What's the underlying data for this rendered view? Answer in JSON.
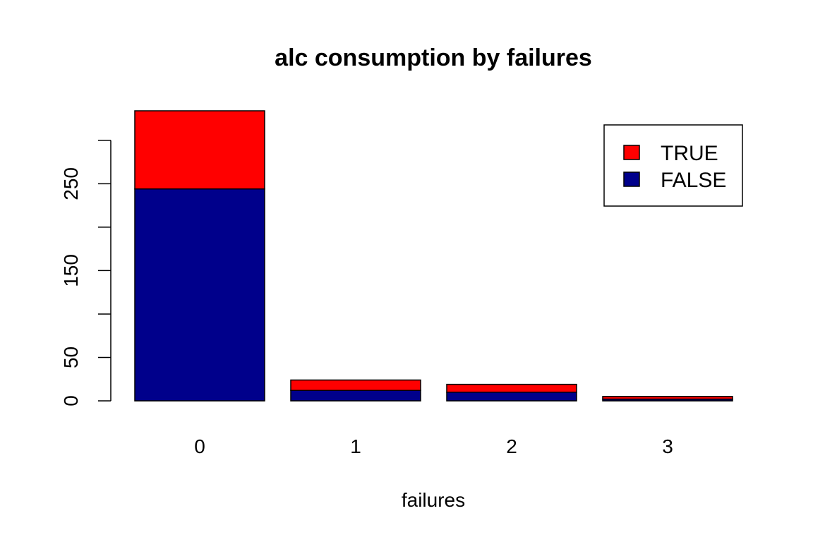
{
  "chart_data": {
    "type": "bar",
    "stacked": true,
    "title": "alc consumption by failures",
    "xlabel": "failures",
    "ylabel": "",
    "categories": [
      "0",
      "1",
      "2",
      "3"
    ],
    "series": [
      {
        "name": "FALSE",
        "color": "#00008B",
        "values": [
          244,
          12,
          10,
          2
        ]
      },
      {
        "name": "TRUE",
        "color": "#FF0000",
        "values": [
          90,
          12,
          9,
          3
        ]
      }
    ],
    "yticks": [
      0,
      50,
      100,
      150,
      200,
      250,
      300
    ],
    "ytick_labels": [
      "0",
      "50",
      "",
      "150",
      "",
      "250",
      ""
    ],
    "ylim": [
      0,
      334
    ],
    "legend": {
      "position": "top-right",
      "entries": [
        "TRUE",
        "FALSE"
      ]
    },
    "grid": false
  }
}
